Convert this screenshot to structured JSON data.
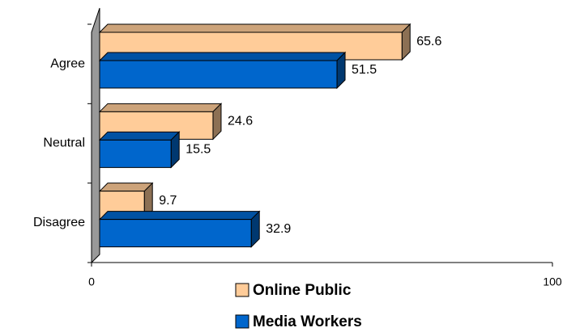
{
  "chart_data": {
    "type": "bar3d_horizontal",
    "categories": [
      "Agree",
      "Neutral",
      "Disagree"
    ],
    "series": [
      {
        "name": "Online Public",
        "color": "#ffcc99",
        "values": [
          65.6,
          24.6,
          9.7
        ]
      },
      {
        "name": "Media Workers",
        "color": "#0066cc",
        "values": [
          51.5,
          15.5,
          32.9
        ]
      }
    ],
    "xlim": [
      0,
      100
    ],
    "xticks": [
      0,
      100
    ],
    "legend": "bottom"
  }
}
